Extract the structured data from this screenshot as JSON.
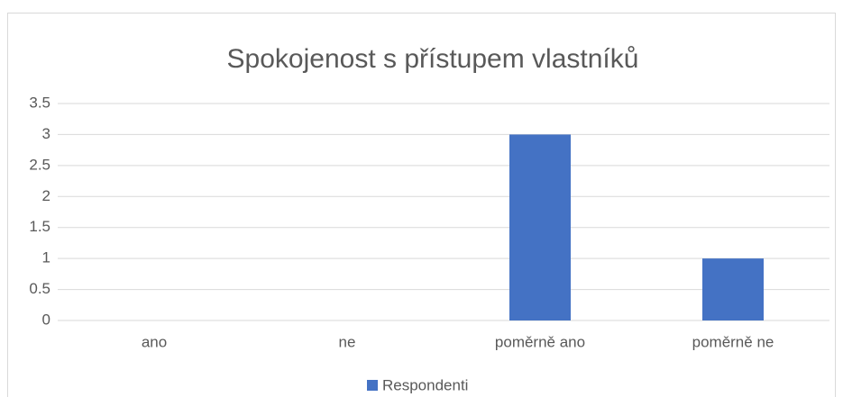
{
  "chart_data": {
    "type": "bar",
    "title": "Spokojenost s přístupem vlastníků",
    "categories": [
      "ano",
      "ne",
      "poměrně ano",
      "poměrně ne"
    ],
    "series": [
      {
        "name": "Respondenti",
        "color": "#4472c4",
        "values": [
          0,
          0,
          3,
          1
        ]
      }
    ],
    "ylim": [
      0,
      3.5
    ],
    "yticks": [
      0,
      0.5,
      1,
      1.5,
      2,
      2.5,
      3,
      3.5
    ],
    "grid": true,
    "legend": "bottom"
  }
}
